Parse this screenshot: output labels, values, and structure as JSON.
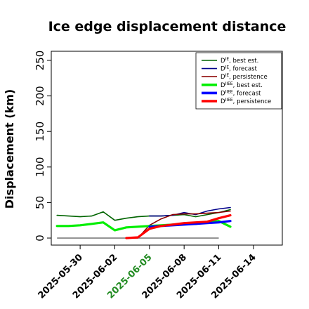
{
  "chart_data": {
    "type": "line",
    "title": "Ice edge displacement distance",
    "ylabel": "Displacement (km)",
    "xlabel": "",
    "ylim": [
      0,
      260
    ],
    "yticks": [
      0,
      50,
      100,
      150,
      200,
      250
    ],
    "x_tick_labels": [
      {
        "label": "2025-05-30",
        "x": 2,
        "color": "#000000"
      },
      {
        "label": "2025-06-02",
        "x": 5,
        "color": "#000000"
      },
      {
        "label": "2025-06-05",
        "x": 8,
        "color": "#228B22"
      },
      {
        "label": "2025-06-08",
        "x": 11,
        "color": "#000000"
      },
      {
        "label": "2025-06-11",
        "x": 14,
        "color": "#000000"
      },
      {
        "label": "2025-06-14",
        "x": 17,
        "color": "#000000"
      }
    ],
    "xlim": [
      -0.5,
      19.5
    ],
    "reference_line": {
      "from": 0,
      "to": 14,
      "value": 0,
      "color": "#555555"
    },
    "legend": {
      "placement": "top-right"
    },
    "series": [
      {
        "name": "D_best_est",
        "label_main": "D",
        "label_sup": "IE",
        "label_rest": ", best est.",
        "color": "#006400",
        "thick": false,
        "points": [
          [
            0,
            32
          ],
          [
            1,
            31
          ],
          [
            2,
            30
          ],
          [
            3,
            31
          ],
          [
            4,
            37
          ],
          [
            5,
            25
          ],
          [
            6,
            28
          ],
          [
            7,
            30
          ],
          [
            8,
            31
          ],
          [
            9,
            31
          ],
          [
            10,
            32
          ],
          [
            11,
            33
          ],
          [
            12,
            30
          ],
          [
            13,
            33
          ],
          [
            14,
            36
          ],
          [
            15,
            40
          ]
        ]
      },
      {
        "name": "D_forecast",
        "label_main": "D",
        "label_sup": "IE",
        "label_rest": ", forecast",
        "color": "#00008B",
        "thick": false,
        "points": [
          [
            8,
            31
          ],
          [
            9,
            31
          ],
          [
            10,
            32
          ],
          [
            11,
            36
          ],
          [
            12,
            33
          ],
          [
            13,
            38
          ],
          [
            14,
            41
          ],
          [
            15,
            43
          ]
        ]
      },
      {
        "name": "D_persistence",
        "label_main": "D",
        "label_sup": "IE",
        "label_rest": ", persistence",
        "color": "#8B0000",
        "thick": false,
        "points": [
          [
            6,
            0
          ],
          [
            7,
            0
          ],
          [
            8,
            18
          ],
          [
            9,
            27
          ],
          [
            10,
            33
          ],
          [
            11,
            34
          ],
          [
            12,
            34
          ],
          [
            13,
            35
          ],
          [
            14,
            36
          ],
          [
            15,
            38
          ]
        ]
      },
      {
        "name": "D_IIEE_best_est",
        "label_main": "D",
        "label_sup": "IIEE",
        "label_rest": ", best est.",
        "color": "#00EE00",
        "thick": true,
        "points": [
          [
            0,
            17
          ],
          [
            1,
            17
          ],
          [
            2,
            18
          ],
          [
            3,
            20
          ],
          [
            4,
            22
          ],
          [
            5,
            11
          ],
          [
            6,
            15
          ],
          [
            7,
            16
          ],
          [
            8,
            17
          ],
          [
            9,
            18
          ],
          [
            10,
            19
          ],
          [
            11,
            20
          ],
          [
            12,
            20
          ],
          [
            13,
            22
          ],
          [
            14,
            24
          ],
          [
            15,
            16
          ]
        ]
      },
      {
        "name": "D_IIEE_forecast",
        "label_main": "D",
        "label_sup": "IIEE",
        "label_rest": ", forecast",
        "color": "#0000FF",
        "thick": true,
        "points": [
          [
            8,
            16
          ],
          [
            9,
            17
          ],
          [
            10,
            18
          ],
          [
            11,
            19
          ],
          [
            12,
            20
          ],
          [
            13,
            21
          ],
          [
            14,
            22
          ],
          [
            15,
            24
          ]
        ]
      },
      {
        "name": "D_IIEE_persistence",
        "label_main": "D",
        "label_sup": "IIEE",
        "label_rest": ", persistence",
        "color": "#FF0000",
        "thick": true,
        "points": [
          [
            6,
            0
          ],
          [
            7,
            1
          ],
          [
            8,
            13
          ],
          [
            9,
            17
          ],
          [
            10,
            19
          ],
          [
            11,
            21
          ],
          [
            12,
            22
          ],
          [
            13,
            23
          ],
          [
            14,
            28
          ],
          [
            15,
            32
          ]
        ]
      }
    ]
  }
}
